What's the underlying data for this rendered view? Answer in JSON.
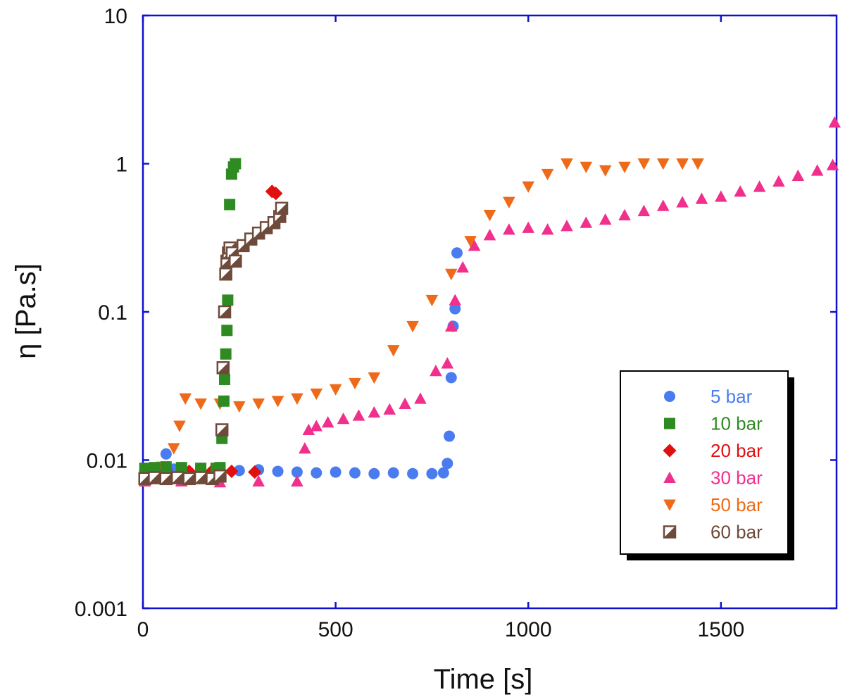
{
  "chart_data": {
    "type": "scatter",
    "xlabel": "Time [s]",
    "ylabel": "η [Pa.s]",
    "xlim": [
      0,
      1800
    ],
    "ylim": [
      0.001,
      10
    ],
    "yscale": "log",
    "grid": false,
    "legend_position": "bottom-right",
    "xticks": [
      "0",
      "500",
      "1000",
      "1500"
    ],
    "yticks": [
      "0.001",
      "0.01",
      "0.1",
      "1",
      "10"
    ],
    "colors": {
      "axis": "#1010d0",
      "5 bar": "#4a7cf0",
      "10 bar": "#2e8b22",
      "20 bar": "#e01010",
      "30 bar": "#f0308c",
      "50 bar": "#ee6a18",
      "60 bar": "#6e4a3a"
    },
    "series": [
      {
        "name": "5 bar",
        "marker": "circle",
        "x": [
          5,
          20,
          40,
          60,
          80,
          100,
          150,
          200,
          250,
          300,
          350,
          400,
          450,
          500,
          550,
          600,
          650,
          700,
          750,
          780,
          790,
          795,
          800,
          805,
          810,
          815
        ],
        "y": [
          0.0085,
          0.0088,
          0.0086,
          0.011,
          0.0087,
          0.0086,
          0.0088,
          0.0087,
          0.0085,
          0.0086,
          0.0084,
          0.0083,
          0.0082,
          0.0083,
          0.0082,
          0.0081,
          0.0082,
          0.0081,
          0.0081,
          0.0082,
          0.0095,
          0.0145,
          0.036,
          0.08,
          0.105,
          0.25
        ]
      },
      {
        "name": "10 bar",
        "marker": "square",
        "x": [
          5,
          30,
          60,
          100,
          150,
          190,
          200,
          205,
          210,
          212,
          215,
          218,
          220,
          225,
          230,
          235,
          240
        ],
        "y": [
          0.0088,
          0.0089,
          0.009,
          0.0089,
          0.0088,
          0.0088,
          0.0089,
          0.014,
          0.025,
          0.035,
          0.052,
          0.075,
          0.12,
          0.53,
          0.85,
          0.95,
          1.0
        ]
      },
      {
        "name": "20 bar",
        "marker": "diamond",
        "x": [
          10,
          60,
          120,
          180,
          230,
          290,
          335,
          345
        ],
        "y": [
          0.0085,
          0.0086,
          0.0084,
          0.0085,
          0.0084,
          0.0083,
          0.65,
          0.63
        ]
      },
      {
        "name": "30 bar",
        "marker": "triangle-up",
        "x": [
          5,
          100,
          200,
          300,
          400,
          420,
          430,
          450,
          480,
          520,
          560,
          600,
          640,
          680,
          720,
          760,
          790,
          800,
          810,
          830,
          860,
          900,
          950,
          1000,
          1050,
          1100,
          1150,
          1200,
          1250,
          1300,
          1350,
          1400,
          1450,
          1500,
          1550,
          1600,
          1650,
          1700,
          1750,
          1790,
          1795
        ],
        "y": [
          0.0072,
          0.0072,
          0.0071,
          0.0072,
          0.0072,
          0.012,
          0.016,
          0.017,
          0.018,
          0.019,
          0.02,
          0.021,
          0.022,
          0.024,
          0.026,
          0.04,
          0.045,
          0.08,
          0.12,
          0.2,
          0.28,
          0.33,
          0.36,
          0.37,
          0.36,
          0.38,
          0.4,
          0.42,
          0.45,
          0.48,
          0.52,
          0.55,
          0.58,
          0.6,
          0.65,
          0.7,
          0.76,
          0.83,
          0.9,
          0.98,
          1.9
        ]
      },
      {
        "name": "50 bar",
        "marker": "triangle-down",
        "x": [
          5,
          50,
          80,
          95,
          110,
          150,
          200,
          250,
          300,
          350,
          400,
          450,
          500,
          550,
          600,
          650,
          700,
          750,
          800,
          850,
          900,
          950,
          1000,
          1050,
          1100,
          1150,
          1200,
          1250,
          1300,
          1350,
          1400,
          1440
        ],
        "y": [
          0.0078,
          0.009,
          0.012,
          0.017,
          0.026,
          0.024,
          0.024,
          0.023,
          0.024,
          0.025,
          0.026,
          0.028,
          0.03,
          0.033,
          0.036,
          0.055,
          0.08,
          0.12,
          0.18,
          0.3,
          0.45,
          0.55,
          0.7,
          0.85,
          1.0,
          0.95,
          0.9,
          0.95,
          1.0,
          1.0,
          1.0,
          1.0
        ]
      },
      {
        "name": "60 bar",
        "marker": "half-square",
        "x": [
          5,
          30,
          60,
          90,
          120,
          150,
          180,
          200,
          205,
          208,
          212,
          215,
          218,
          222,
          226,
          232,
          240,
          260,
          280,
          300,
          320,
          340,
          355,
          360
        ],
        "y": [
          0.0075,
          0.0076,
          0.0075,
          0.0076,
          0.0075,
          0.0076,
          0.0075,
          0.0078,
          0.016,
          0.042,
          0.1,
          0.18,
          0.22,
          0.25,
          0.27,
          0.25,
          0.22,
          0.28,
          0.31,
          0.34,
          0.37,
          0.4,
          0.44,
          0.5
        ]
      }
    ]
  }
}
